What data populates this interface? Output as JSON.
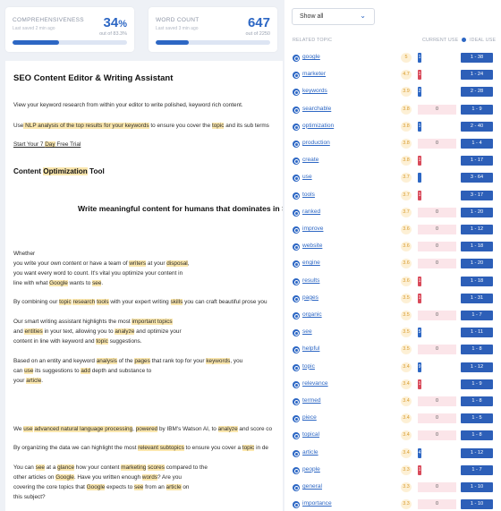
{
  "cards": [
    {
      "title": "COMPREHENSIVENESS",
      "sub": "Last saved 2 min ago",
      "value": "34",
      "unit": "%",
      "out": "out of 83.3%",
      "progress": 0.41
    },
    {
      "title": "WORD COUNT",
      "sub": "Last saved 3 min ago",
      "value": "647",
      "unit": "",
      "out": "out of 2250",
      "progress": 0.29
    }
  ],
  "doc": {
    "title": "SEO Content Editor & Writing Assistant",
    "intro": "View your keyword research from within your editor to write polished, keyword rich content.",
    "nlp": [
      "Use",
      " NLP ",
      "analysis",
      " of the top ",
      "results",
      " for your ",
      "keywords",
      " to ensure you cover the ",
      "topic",
      " and its sub terms"
    ],
    "trial": [
      "Start Your 7 ",
      "Day",
      " Free Trial"
    ],
    "tool_heading": [
      "Content ",
      "Optimization",
      " Tool"
    ],
    "center_heading": "Write meaningful content for humans that dominates in SE",
    "p_whether": "Whether",
    "p_w1": [
      " you write your own content or have a team of ",
      "writers",
      " at your ",
      "disposal",
      ","
    ],
    "p_w2": "you want every word to count. It's vital you optimize your content in",
    "p_w3": [
      "line with what ",
      "Google",
      " wants to ",
      "see",
      "."
    ],
    "p_comb": [
      "By combining our ",
      "topic",
      " ",
      "research",
      " ",
      "tools",
      " with your expert writing ",
      "skills",
      " you can craft beautiful prose you"
    ],
    "p_sm1": [
      "Our smart writing assistant highlights the most ",
      "important topics"
    ],
    "p_sm2": [
      " and ",
      "entities",
      " in your text, allowing you to ",
      "analyze",
      " and optimize your"
    ],
    "p_sm3": [
      "content in line with keyword and ",
      "topic",
      " suggestions."
    ],
    "p_en1": [
      "Based on an entity and keyword ",
      "analysis",
      " of the ",
      "pages",
      " that rank top for your ",
      "keywords",
      ", you"
    ],
    "p_en2": [
      "can ",
      "use",
      " its suggestions to ",
      "add",
      " depth and substance to"
    ],
    "p_en3": [
      "your ",
      "article",
      "."
    ],
    "p_nlp": [
      "We ",
      "use",
      " ",
      "advanced natural language processing",
      ", ",
      "powered",
      " by IBM's Watson AI, to ",
      "analyze",
      " and score co"
    ],
    "p_org": [
      "By organizing the data we can highlight the most ",
      "relevant subtopics",
      " to ensure you cover a ",
      "topic",
      " in de"
    ],
    "p_see1": [
      "You can ",
      "see",
      " at a ",
      "glance",
      " how your content ",
      "marketing",
      " ",
      "scores",
      " compared to the"
    ],
    "p_see2": [
      "other articles on ",
      "Google",
      ". Have you written enough ",
      "words",
      "? Are you"
    ],
    "p_see3": [
      "covering the core topics that ",
      "Google",
      " expects to ",
      "see",
      " from an ",
      "article",
      " on"
    ],
    "p_see4": "this subject?"
  },
  "panel": {
    "filter_value": "Show all",
    "headers": {
      "topic": "RELATED TOPIC",
      "current": "CURRENT USE",
      "ideal": "IDEAL USE"
    },
    "rows": [
      {
        "kw": "google",
        "score": "5",
        "cur": "",
        "mark": "1",
        "mark_color": "blue",
        "bg": "tick",
        "ideal": "1 - 38"
      },
      {
        "kw": "marketer",
        "score": "4.7",
        "cur": "",
        "mark": "1",
        "mark_color": "red",
        "bg": "tick",
        "ideal": "1 - 24"
      },
      {
        "kw": "keywords",
        "score": "3.9",
        "cur": "",
        "mark": "2",
        "mark_color": "blue",
        "bg": "tick",
        "ideal": "2 - 28"
      },
      {
        "kw": "searchable",
        "score": "3.8",
        "cur": "0",
        "mark": "",
        "mark_color": "",
        "bg": "red",
        "ideal": "1 - 9"
      },
      {
        "kw": "optimization",
        "score": "3.8",
        "cur": "",
        "mark": "1",
        "mark_color": "blue",
        "bg": "tick",
        "ideal": "2 - 40"
      },
      {
        "kw": "production",
        "score": "3.8",
        "cur": "0",
        "mark": "",
        "mark_color": "",
        "bg": "red",
        "ideal": "1 - 4"
      },
      {
        "kw": "create",
        "score": "3.8",
        "cur": "",
        "mark": "1",
        "mark_color": "red",
        "bg": "tick",
        "ideal": "1 - 17"
      },
      {
        "kw": "use",
        "score": "3.7",
        "cur": "",
        "mark": "",
        "mark_color": "blue",
        "bg": "tick",
        "ideal": "3 - 64"
      },
      {
        "kw": "tools",
        "score": "3.7",
        "cur": "",
        "mark": "1",
        "mark_color": "red",
        "bg": "tick",
        "ideal": "3 - 17"
      },
      {
        "kw": "ranked",
        "score": "3.7",
        "cur": "0",
        "mark": "",
        "mark_color": "",
        "bg": "red",
        "ideal": "1 - 20"
      },
      {
        "kw": "improve",
        "score": "3.6",
        "cur": "0",
        "mark": "",
        "mark_color": "",
        "bg": "red",
        "ideal": "1 - 12"
      },
      {
        "kw": "website",
        "score": "3.6",
        "cur": "0",
        "mark": "",
        "mark_color": "",
        "bg": "red",
        "ideal": "1 - 18"
      },
      {
        "kw": "engine",
        "score": "3.6",
        "cur": "0",
        "mark": "",
        "mark_color": "",
        "bg": "red",
        "ideal": "1 - 20"
      },
      {
        "kw": "results",
        "score": "3.6",
        "cur": "",
        "mark": "1",
        "mark_color": "red",
        "bg": "tick",
        "ideal": "1 - 18"
      },
      {
        "kw": "pages",
        "score": "3.5",
        "cur": "",
        "mark": "1",
        "mark_color": "red",
        "bg": "tick",
        "ideal": "1 - 31"
      },
      {
        "kw": "organic",
        "score": "3.5",
        "cur": "0",
        "mark": "",
        "mark_color": "",
        "bg": "red",
        "ideal": "1 - 7"
      },
      {
        "kw": "see",
        "score": "3.5",
        "cur": "",
        "mark": "5",
        "mark_color": "blue",
        "bg": "tick",
        "ideal": "1 - 11"
      },
      {
        "kw": "helpful",
        "score": "3.5",
        "cur": "0",
        "mark": "",
        "mark_color": "",
        "bg": "red",
        "ideal": "1 - 8"
      },
      {
        "kw": "topic",
        "score": "3.4",
        "cur": "",
        "mark": "9",
        "mark_color": "blue",
        "bg": "tick",
        "ideal": "1 - 12"
      },
      {
        "kw": "relevance",
        "score": "3.4",
        "cur": "",
        "mark": "1",
        "mark_color": "red",
        "bg": "tick",
        "ideal": "1 - 9"
      },
      {
        "kw": "termed",
        "score": "3.4",
        "cur": "0",
        "mark": "",
        "mark_color": "",
        "bg": "red",
        "ideal": "1 - 8"
      },
      {
        "kw": "piece",
        "score": "3.4",
        "cur": "0",
        "mark": "",
        "mark_color": "",
        "bg": "red",
        "ideal": "1 - 5"
      },
      {
        "kw": "topical",
        "score": "3.4",
        "cur": "0",
        "mark": "",
        "mark_color": "",
        "bg": "red",
        "ideal": "1 - 8"
      },
      {
        "kw": "article",
        "score": "3.4",
        "cur": "",
        "mark": "4",
        "mark_color": "blue",
        "bg": "tick",
        "ideal": "1 - 12"
      },
      {
        "kw": "people",
        "score": "3.3",
        "cur": "",
        "mark": "1",
        "mark_color": "red",
        "bg": "tick",
        "ideal": "1 - 7"
      },
      {
        "kw": "general",
        "score": "3.3",
        "cur": "0",
        "mark": "",
        "mark_color": "",
        "bg": "red",
        "ideal": "1 - 10"
      },
      {
        "kw": "importance",
        "score": "3.3",
        "cur": "0",
        "mark": "",
        "mark_color": "",
        "bg": "red",
        "ideal": "1 - 10"
      }
    ]
  }
}
